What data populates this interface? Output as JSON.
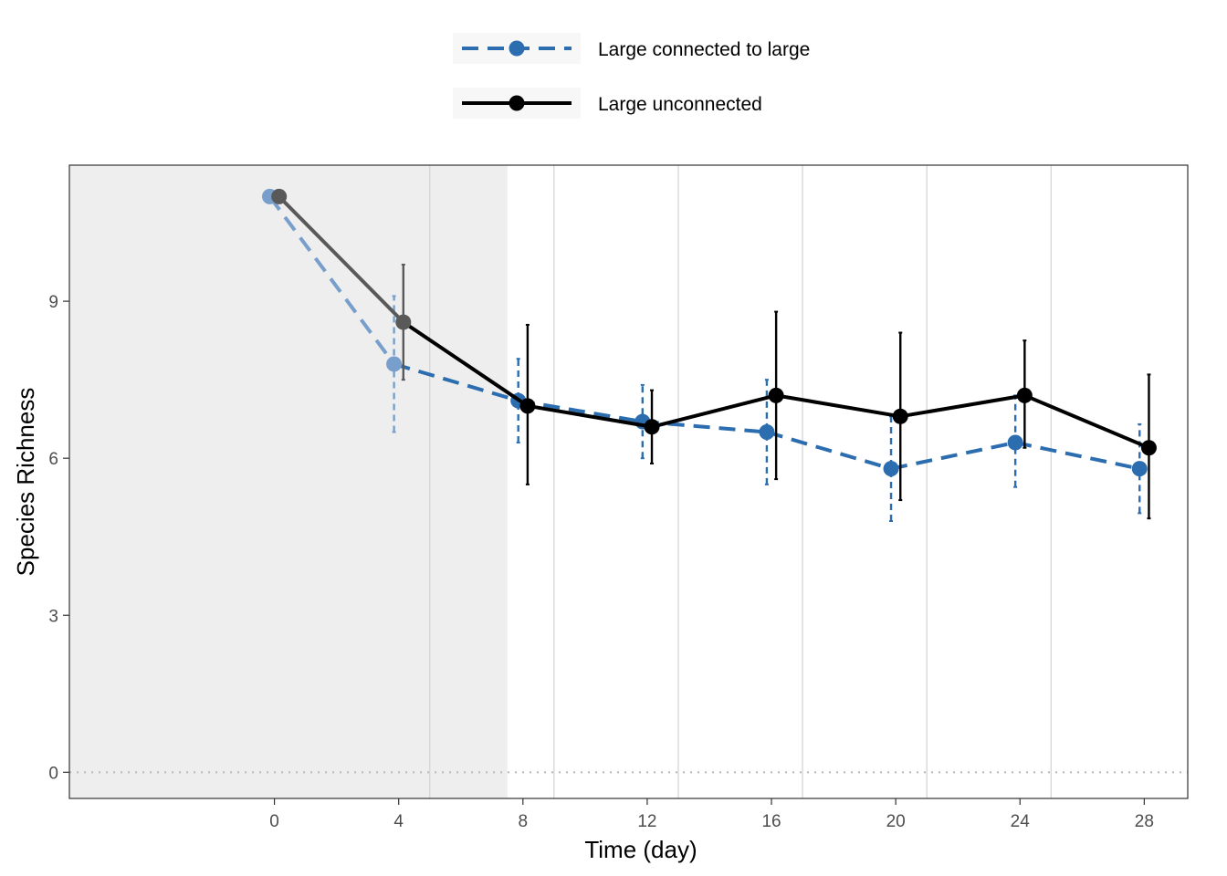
{
  "chart_data": {
    "type": "line",
    "xlabel": "Time (day)",
    "ylabel": "Species Richness",
    "xlim": [
      -6.6,
      29.4
    ],
    "ylim": [
      -0.5,
      11.6
    ],
    "x_ticks": [
      0,
      4,
      8,
      12,
      16,
      20,
      24,
      28
    ],
    "y_ticks": [
      0,
      3,
      6,
      9
    ],
    "vlines": [
      5,
      9,
      13,
      17,
      21,
      25
    ],
    "shaded_region": [
      -6.6,
      7.5
    ],
    "hline_dotted": 0,
    "legend_position": "top",
    "series": [
      {
        "name": "Large connected to large",
        "color": "#2c6db0",
        "linestyle": "dashed",
        "points": [
          {
            "x": -0.15,
            "y": 11.0,
            "lo": null,
            "hi": null
          },
          {
            "x": 3.85,
            "y": 7.8,
            "lo": 6.5,
            "hi": 9.1
          },
          {
            "x": 7.85,
            "y": 7.1,
            "lo": 6.3,
            "hi": 7.9
          },
          {
            "x": 11.85,
            "y": 6.7,
            "lo": 6.0,
            "hi": 7.4
          },
          {
            "x": 15.85,
            "y": 6.5,
            "lo": 5.5,
            "hi": 7.5
          },
          {
            "x": 19.85,
            "y": 5.8,
            "lo": 4.8,
            "hi": 6.8
          },
          {
            "x": 23.85,
            "y": 6.3,
            "lo": 5.45,
            "hi": 7.2
          },
          {
            "x": 27.85,
            "y": 5.8,
            "lo": 4.95,
            "hi": 6.65
          }
        ]
      },
      {
        "name": "Large unconnected",
        "color": "#000000",
        "linestyle": "solid",
        "points": [
          {
            "x": 0.15,
            "y": 11.0,
            "lo": null,
            "hi": null
          },
          {
            "x": 4.15,
            "y": 8.6,
            "lo": 7.5,
            "hi": 9.7
          },
          {
            "x": 8.15,
            "y": 7.0,
            "lo": 5.5,
            "hi": 8.55
          },
          {
            "x": 12.15,
            "y": 6.6,
            "lo": 5.9,
            "hi": 7.3
          },
          {
            "x": 16.15,
            "y": 7.2,
            "lo": 5.6,
            "hi": 8.8
          },
          {
            "x": 20.15,
            "y": 6.8,
            "lo": 5.2,
            "hi": 8.4
          },
          {
            "x": 24.15,
            "y": 7.2,
            "lo": 6.2,
            "hi": 8.25
          },
          {
            "x": 28.15,
            "y": 6.2,
            "lo": 4.85,
            "hi": 7.6
          }
        ]
      }
    ]
  }
}
